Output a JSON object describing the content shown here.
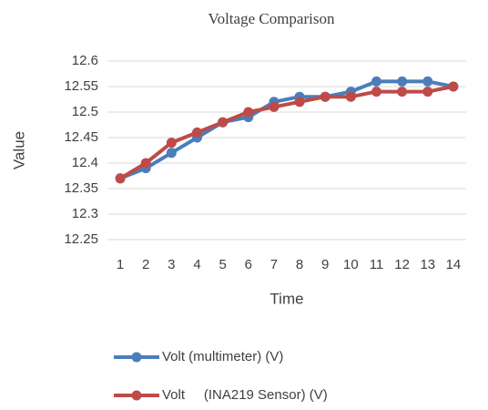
{
  "chart_data": {
    "type": "line",
    "title": "Voltage Comparison",
    "x_label": "Time",
    "y_label": "Value",
    "categories": [
      "1",
      "2",
      "3",
      "4",
      "5",
      "6",
      "7",
      "8",
      "9",
      "10",
      "11",
      "12",
      "13",
      "14"
    ],
    "series": [
      {
        "name": "Volt (multimeter) (V)",
        "color": "#4a7ebb",
        "values": [
          12.37,
          12.39,
          12.42,
          12.45,
          12.48,
          12.49,
          12.52,
          12.53,
          12.53,
          12.54,
          12.56,
          12.56,
          12.56,
          12.55
        ]
      },
      {
        "name": "Volt     (INA219 Sensor) (V)",
        "color": "#be4b48",
        "values": [
          12.37,
          12.4,
          12.44,
          12.46,
          12.48,
          12.5,
          12.51,
          12.52,
          12.53,
          12.53,
          12.54,
          12.54,
          12.54,
          12.55
        ]
      }
    ],
    "ylim": [
      12.25,
      12.6
    ],
    "yticks": [
      12.25,
      12.3,
      12.35,
      12.4,
      12.45,
      12.5,
      12.55,
      12.6
    ],
    "grid": true,
    "legend": "bottom"
  }
}
